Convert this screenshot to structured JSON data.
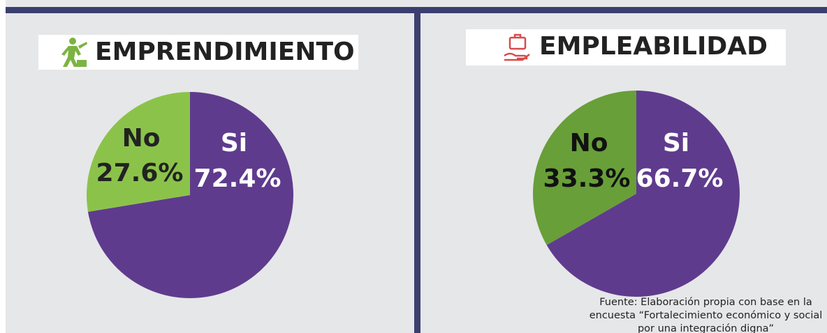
{
  "chart_data": [
    {
      "type": "pie",
      "title": "EMPRENDIMIENTO",
      "categories": [
        "Si",
        "No"
      ],
      "values": [
        72.4,
        27.6
      ],
      "value_labels": [
        "72.4%",
        "27.6%"
      ],
      "colors": [
        "#5f3b8d",
        "#8bc34a"
      ]
    },
    {
      "type": "pie",
      "title": "EMPLEABILIDAD",
      "categories": [
        "Si",
        "No"
      ],
      "values": [
        66.7,
        33.3
      ],
      "value_labels": [
        "66.7%",
        "33.3%"
      ],
      "colors": [
        "#5f3b8d",
        "#689f38"
      ]
    }
  ],
  "source": "Fuente: Elaboración propia con base en la encuesta “Fortalecimiento económico y social por una integración digna”"
}
